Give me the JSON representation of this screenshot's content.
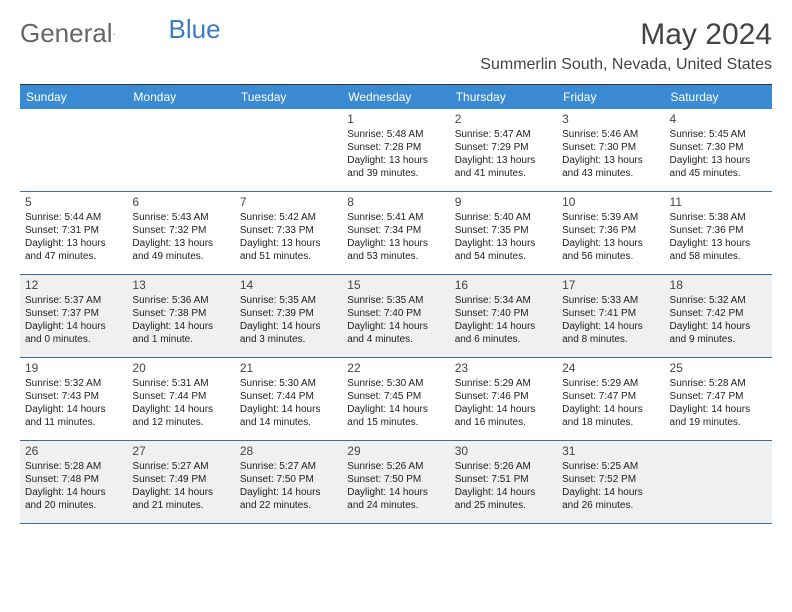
{
  "logo": {
    "part1": "General",
    "part2": "Blue"
  },
  "title": "May 2024",
  "location": "Summerlin South, Nevada, United States",
  "header_bg": "#3b8bd4",
  "weekdays": [
    "Sunday",
    "Monday",
    "Tuesday",
    "Wednesday",
    "Thursday",
    "Friday",
    "Saturday"
  ],
  "shaded_row_bg": "#f0f0f0",
  "row_border_color": "#3b6ea0",
  "font_family": "Arial",
  "weeks": [
    {
      "shaded": false,
      "days": [
        {
          "empty": true
        },
        {
          "empty": true
        },
        {
          "empty": true
        },
        {
          "num": "1",
          "sunrise": "Sunrise: 5:48 AM",
          "sunset": "Sunset: 7:28 PM",
          "daylight1": "Daylight: 13 hours",
          "daylight2": "and 39 minutes."
        },
        {
          "num": "2",
          "sunrise": "Sunrise: 5:47 AM",
          "sunset": "Sunset: 7:29 PM",
          "daylight1": "Daylight: 13 hours",
          "daylight2": "and 41 minutes."
        },
        {
          "num": "3",
          "sunrise": "Sunrise: 5:46 AM",
          "sunset": "Sunset: 7:30 PM",
          "daylight1": "Daylight: 13 hours",
          "daylight2": "and 43 minutes."
        },
        {
          "num": "4",
          "sunrise": "Sunrise: 5:45 AM",
          "sunset": "Sunset: 7:30 PM",
          "daylight1": "Daylight: 13 hours",
          "daylight2": "and 45 minutes."
        }
      ]
    },
    {
      "shaded": false,
      "days": [
        {
          "num": "5",
          "sunrise": "Sunrise: 5:44 AM",
          "sunset": "Sunset: 7:31 PM",
          "daylight1": "Daylight: 13 hours",
          "daylight2": "and 47 minutes."
        },
        {
          "num": "6",
          "sunrise": "Sunrise: 5:43 AM",
          "sunset": "Sunset: 7:32 PM",
          "daylight1": "Daylight: 13 hours",
          "daylight2": "and 49 minutes."
        },
        {
          "num": "7",
          "sunrise": "Sunrise: 5:42 AM",
          "sunset": "Sunset: 7:33 PM",
          "daylight1": "Daylight: 13 hours",
          "daylight2": "and 51 minutes."
        },
        {
          "num": "8",
          "sunrise": "Sunrise: 5:41 AM",
          "sunset": "Sunset: 7:34 PM",
          "daylight1": "Daylight: 13 hours",
          "daylight2": "and 53 minutes."
        },
        {
          "num": "9",
          "sunrise": "Sunrise: 5:40 AM",
          "sunset": "Sunset: 7:35 PM",
          "daylight1": "Daylight: 13 hours",
          "daylight2": "and 54 minutes."
        },
        {
          "num": "10",
          "sunrise": "Sunrise: 5:39 AM",
          "sunset": "Sunset: 7:36 PM",
          "daylight1": "Daylight: 13 hours",
          "daylight2": "and 56 minutes."
        },
        {
          "num": "11",
          "sunrise": "Sunrise: 5:38 AM",
          "sunset": "Sunset: 7:36 PM",
          "daylight1": "Daylight: 13 hours",
          "daylight2": "and 58 minutes."
        }
      ]
    },
    {
      "shaded": true,
      "days": [
        {
          "num": "12",
          "sunrise": "Sunrise: 5:37 AM",
          "sunset": "Sunset: 7:37 PM",
          "daylight1": "Daylight: 14 hours",
          "daylight2": "and 0 minutes."
        },
        {
          "num": "13",
          "sunrise": "Sunrise: 5:36 AM",
          "sunset": "Sunset: 7:38 PM",
          "daylight1": "Daylight: 14 hours",
          "daylight2": "and 1 minute."
        },
        {
          "num": "14",
          "sunrise": "Sunrise: 5:35 AM",
          "sunset": "Sunset: 7:39 PM",
          "daylight1": "Daylight: 14 hours",
          "daylight2": "and 3 minutes."
        },
        {
          "num": "15",
          "sunrise": "Sunrise: 5:35 AM",
          "sunset": "Sunset: 7:40 PM",
          "daylight1": "Daylight: 14 hours",
          "daylight2": "and 4 minutes."
        },
        {
          "num": "16",
          "sunrise": "Sunrise: 5:34 AM",
          "sunset": "Sunset: 7:40 PM",
          "daylight1": "Daylight: 14 hours",
          "daylight2": "and 6 minutes."
        },
        {
          "num": "17",
          "sunrise": "Sunrise: 5:33 AM",
          "sunset": "Sunset: 7:41 PM",
          "daylight1": "Daylight: 14 hours",
          "daylight2": "and 8 minutes."
        },
        {
          "num": "18",
          "sunrise": "Sunrise: 5:32 AM",
          "sunset": "Sunset: 7:42 PM",
          "daylight1": "Daylight: 14 hours",
          "daylight2": "and 9 minutes."
        }
      ]
    },
    {
      "shaded": false,
      "days": [
        {
          "num": "19",
          "sunrise": "Sunrise: 5:32 AM",
          "sunset": "Sunset: 7:43 PM",
          "daylight1": "Daylight: 14 hours",
          "daylight2": "and 11 minutes."
        },
        {
          "num": "20",
          "sunrise": "Sunrise: 5:31 AM",
          "sunset": "Sunset: 7:44 PM",
          "daylight1": "Daylight: 14 hours",
          "daylight2": "and 12 minutes."
        },
        {
          "num": "21",
          "sunrise": "Sunrise: 5:30 AM",
          "sunset": "Sunset: 7:44 PM",
          "daylight1": "Daylight: 14 hours",
          "daylight2": "and 14 minutes."
        },
        {
          "num": "22",
          "sunrise": "Sunrise: 5:30 AM",
          "sunset": "Sunset: 7:45 PM",
          "daylight1": "Daylight: 14 hours",
          "daylight2": "and 15 minutes."
        },
        {
          "num": "23",
          "sunrise": "Sunrise: 5:29 AM",
          "sunset": "Sunset: 7:46 PM",
          "daylight1": "Daylight: 14 hours",
          "daylight2": "and 16 minutes."
        },
        {
          "num": "24",
          "sunrise": "Sunrise: 5:29 AM",
          "sunset": "Sunset: 7:47 PM",
          "daylight1": "Daylight: 14 hours",
          "daylight2": "and 18 minutes."
        },
        {
          "num": "25",
          "sunrise": "Sunrise: 5:28 AM",
          "sunset": "Sunset: 7:47 PM",
          "daylight1": "Daylight: 14 hours",
          "daylight2": "and 19 minutes."
        }
      ]
    },
    {
      "shaded": true,
      "days": [
        {
          "num": "26",
          "sunrise": "Sunrise: 5:28 AM",
          "sunset": "Sunset: 7:48 PM",
          "daylight1": "Daylight: 14 hours",
          "daylight2": "and 20 minutes."
        },
        {
          "num": "27",
          "sunrise": "Sunrise: 5:27 AM",
          "sunset": "Sunset: 7:49 PM",
          "daylight1": "Daylight: 14 hours",
          "daylight2": "and 21 minutes."
        },
        {
          "num": "28",
          "sunrise": "Sunrise: 5:27 AM",
          "sunset": "Sunset: 7:50 PM",
          "daylight1": "Daylight: 14 hours",
          "daylight2": "and 22 minutes."
        },
        {
          "num": "29",
          "sunrise": "Sunrise: 5:26 AM",
          "sunset": "Sunset: 7:50 PM",
          "daylight1": "Daylight: 14 hours",
          "daylight2": "and 24 minutes."
        },
        {
          "num": "30",
          "sunrise": "Sunrise: 5:26 AM",
          "sunset": "Sunset: 7:51 PM",
          "daylight1": "Daylight: 14 hours",
          "daylight2": "and 25 minutes."
        },
        {
          "num": "31",
          "sunrise": "Sunrise: 5:25 AM",
          "sunset": "Sunset: 7:52 PM",
          "daylight1": "Daylight: 14 hours",
          "daylight2": "and 26 minutes."
        },
        {
          "empty": true
        }
      ]
    }
  ]
}
